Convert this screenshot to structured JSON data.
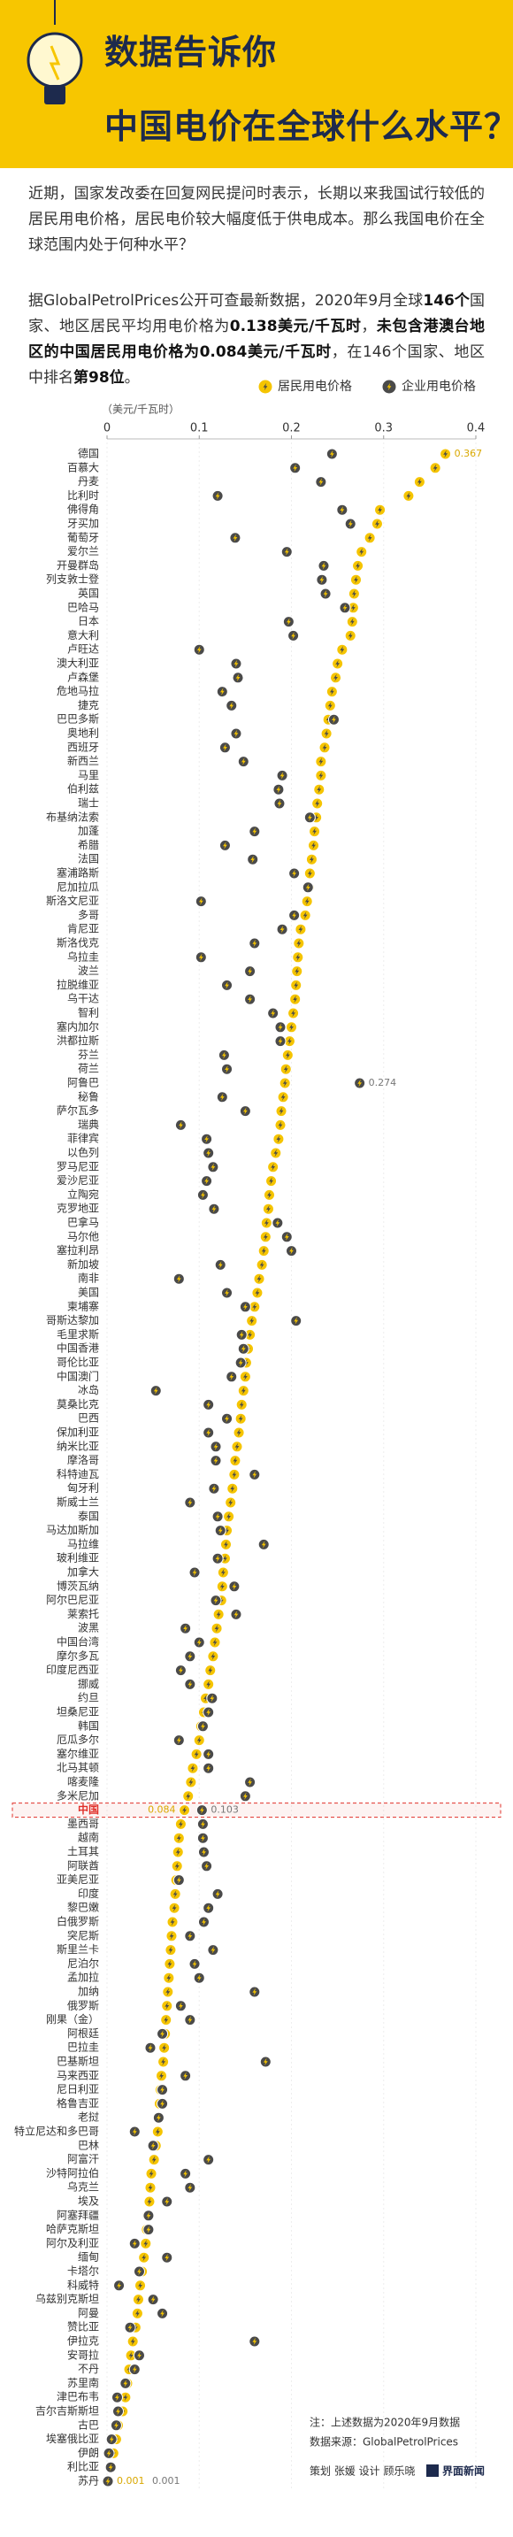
{
  "header": {
    "title_lines": [
      "数据告诉你",
      "中国电价在全球什么水平？"
    ]
  },
  "intro": [
    [
      {
        "text": "近期，国家发改委在回复网民提问时表示，长期以来我国试行较低的居民用电价格，居民电价较大幅度低于供电成本。那么我国电价在全球范围内处于何种水平？",
        "bold": false
      }
    ],
    [
      {
        "text": "据GlobalPetrolPrices公开可查最新数据，2020年9月全球",
        "bold": false
      },
      {
        "text": "146个",
        "bold": true
      },
      {
        "text": "国家、地区居民平均用电价格为",
        "bold": false
      },
      {
        "text": "0.138美元/千瓦时",
        "bold": true
      },
      {
        "text": "，",
        "bold": false
      },
      {
        "text": "未包含港澳台地区的中国居民用电价格为0.084美元/千瓦时",
        "bold": true
      },
      {
        "text": "，在146个国家、地区中排名",
        "bold": false
      },
      {
        "text": "第98位",
        "bold": true
      },
      {
        "text": "。",
        "bold": false
      }
    ]
  ],
  "chart_data": {
    "type": "dot",
    "x_label": "（美元/千瓦时）",
    "xlim": [
      0,
      0.4
    ],
    "xticks": [
      0,
      0.1,
      0.2,
      0.3,
      0.4
    ],
    "grid": true,
    "highlight": "中国",
    "highlight_color": "#e0302a",
    "categories": [
      "德国",
      "百慕大",
      "丹麦",
      "比利时",
      "佛得角",
      "牙买加",
      "葡萄牙",
      "爱尔兰",
      "开曼群岛",
      "列支敦士登",
      "英国",
      "巴哈马",
      "日本",
      "意大利",
      "卢旺达",
      "澳大利亚",
      "卢森堡",
      "危地马拉",
      "捷克",
      "巴巴多斯",
      "奥地利",
      "西班牙",
      "新西兰",
      "马里",
      "伯利兹",
      "瑞士",
      "布基纳法索",
      "加蓬",
      "希腊",
      "法国",
      "塞浦路斯",
      "尼加拉瓜",
      "斯洛文尼亚",
      "多哥",
      "肯尼亚",
      "斯洛伐克",
      "乌拉圭",
      "波兰",
      "拉脱维亚",
      "乌干达",
      "智利",
      "塞内加尔",
      "洪都拉斯",
      "芬兰",
      "荷兰",
      "阿鲁巴",
      "秘鲁",
      "萨尔瓦多",
      "瑞典",
      "菲律宾",
      "以色列",
      "罗马尼亚",
      "爱沙尼亚",
      "立陶宛",
      "克罗地亚",
      "巴拿马",
      "马尔他",
      "塞拉利昂",
      "新加坡",
      "南非",
      "美国",
      "柬埔寨",
      "哥斯达黎加",
      "毛里求斯",
      "中国香港",
      "哥伦比亚",
      "中国澳门",
      "冰岛",
      "莫桑比克",
      "巴西",
      "保加利亚",
      "纳米比亚",
      "摩洛哥",
      "科特迪瓦",
      "匈牙利",
      "斯威士兰",
      "泰国",
      "马达加斯加",
      "马拉维",
      "玻利维亚",
      "加拿大",
      "博茨瓦纳",
      "阿尔巴尼亚",
      "莱索托",
      "波黑",
      "中国台湾",
      "摩尔多瓦",
      "印度尼西亚",
      "挪威",
      "约旦",
      "坦桑尼亚",
      "韩国",
      "厄瓜多尔",
      "塞尔维亚",
      "北马其顿",
      "喀麦隆",
      "多米尼加",
      "中国",
      "墨西哥",
      "越南",
      "土耳其",
      "阿联酋",
      "亚美尼亚",
      "印度",
      "黎巴嫩",
      "白俄罗斯",
      "突尼斯",
      "斯里兰卡",
      "尼泊尔",
      "孟加拉",
      "加纳",
      "俄罗斯",
      "刚果（金）",
      "阿根廷",
      "巴拉圭",
      "巴基斯坦",
      "马来西亚",
      "尼日利亚",
      "格鲁吉亚",
      "老挝",
      "特立尼达和多巴哥",
      "巴林",
      "阿富汗",
      "沙特阿拉伯",
      "乌克兰",
      "埃及",
      "阿塞拜疆",
      "哈萨克斯坦",
      "阿尔及利亚",
      "缅甸",
      "卡塔尔",
      "科威特",
      "乌兹别克斯坦",
      "阿曼",
      "赞比亚",
      "伊拉克",
      "安哥拉",
      "不丹",
      "苏里南",
      "津巴布韦",
      "吉尔吉斯斯坦",
      "古巴",
      "埃塞俄比亚",
      "伊朗",
      "利比亚",
      "苏丹"
    ],
    "series": [
      {
        "name": "居民用电价格",
        "color": "#f5c400",
        "values": [
          0.367,
          0.356,
          0.339,
          0.327,
          0.296,
          0.293,
          0.285,
          0.276,
          0.272,
          0.27,
          0.268,
          0.267,
          0.266,
          0.264,
          0.255,
          0.25,
          0.248,
          0.244,
          0.242,
          0.24,
          0.238,
          0.236,
          0.232,
          0.232,
          0.23,
          0.228,
          0.227,
          0.225,
          0.224,
          0.222,
          0.22,
          0.219,
          0.217,
          0.215,
          0.21,
          0.208,
          0.207,
          0.206,
          0.205,
          0.204,
          0.202,
          0.2,
          0.198,
          0.196,
          0.194,
          0.193,
          0.191,
          0.189,
          0.188,
          0.186,
          0.183,
          0.18,
          0.178,
          0.176,
          0.175,
          0.173,
          0.172,
          0.17,
          0.168,
          0.165,
          0.163,
          0.16,
          0.157,
          0.155,
          0.153,
          0.151,
          0.15,
          0.148,
          0.146,
          0.145,
          0.143,
          0.141,
          0.139,
          0.138,
          0.136,
          0.134,
          0.132,
          0.13,
          0.129,
          0.128,
          0.126,
          0.125,
          0.124,
          0.121,
          0.119,
          0.117,
          0.115,
          0.112,
          0.11,
          0.107,
          0.105,
          0.102,
          0.1,
          0.097,
          0.093,
          0.091,
          0.088,
          0.084,
          0.08,
          0.078,
          0.077,
          0.076,
          0.075,
          0.074,
          0.073,
          0.071,
          0.07,
          0.069,
          0.068,
          0.067,
          0.066,
          0.065,
          0.064,
          0.063,
          0.062,
          0.061,
          0.059,
          0.058,
          0.057,
          0.056,
          0.055,
          0.053,
          0.051,
          0.048,
          0.047,
          0.046,
          0.044,
          0.043,
          0.042,
          0.04,
          0.038,
          0.036,
          0.034,
          0.033,
          0.031,
          0.028,
          0.026,
          0.024,
          0.022,
          0.02,
          0.017,
          0.012,
          0.01,
          0.007,
          0.004,
          0.001
        ],
        "value_labels": [
          "0.367",
          null,
          null,
          null,
          null,
          null,
          null,
          null,
          null,
          null,
          null,
          null,
          null,
          null,
          null,
          null,
          null,
          null,
          null,
          null,
          null,
          null,
          null,
          null,
          null,
          null,
          null,
          null,
          null,
          null,
          null,
          null,
          null,
          null,
          null,
          null,
          null,
          null,
          null,
          null,
          null,
          null,
          null,
          null,
          null,
          null,
          null,
          null,
          null,
          null,
          null,
          null,
          null,
          null,
          null,
          null,
          null,
          null,
          null,
          null,
          null,
          null,
          null,
          null,
          null,
          null,
          null,
          null,
          null,
          null,
          null,
          null,
          null,
          null,
          null,
          null,
          null,
          null,
          null,
          null,
          null,
          null,
          null,
          null,
          null,
          null,
          null,
          null,
          null,
          null,
          null,
          null,
          null,
          null,
          null,
          null,
          null,
          "0.084",
          null,
          null,
          null,
          null,
          null,
          null,
          null,
          null,
          null,
          null,
          null,
          null,
          null,
          null,
          null,
          null,
          null,
          null,
          null,
          null,
          null,
          null,
          null,
          null,
          null,
          null,
          null,
          null,
          null,
          null,
          null,
          null,
          null,
          null,
          null,
          null,
          null,
          null,
          null,
          null,
          null,
          null,
          null,
          null,
          null,
          null,
          null,
          "0.001"
        ]
      },
      {
        "name": "企业用电价格",
        "color": "#4a4a4a",
        "values": [
          0.244,
          0.204,
          0.232,
          0.12,
          0.255,
          0.264,
          0.139,
          0.195,
          0.235,
          0.233,
          0.237,
          0.258,
          0.197,
          0.202,
          0.1,
          0.14,
          0.142,
          0.125,
          0.135,
          0.246,
          0.14,
          0.128,
          0.148,
          0.19,
          0.186,
          0.187,
          0.22,
          0.16,
          0.128,
          0.158,
          0.203,
          0.218,
          0.102,
          0.203,
          0.19,
          0.16,
          0.102,
          0.155,
          0.13,
          0.155,
          0.18,
          0.188,
          0.188,
          0.127,
          0.13,
          0.274,
          0.125,
          0.15,
          0.08,
          0.108,
          0.11,
          0.115,
          0.108,
          0.104,
          0.116,
          0.185,
          0.195,
          0.2,
          0.123,
          0.078,
          0.13,
          0.15,
          0.205,
          0.146,
          0.148,
          0.145,
          0.135,
          0.053,
          0.11,
          0.13,
          0.11,
          0.118,
          0.118,
          0.16,
          0.116,
          0.09,
          0.12,
          0.123,
          0.17,
          0.12,
          0.095,
          0.138,
          0.118,
          0.14,
          0.085,
          0.1,
          0.09,
          0.08,
          0.09,
          0.114,
          0.11,
          0.104,
          0.078,
          0.11,
          0.11,
          0.155,
          0.15,
          0.103,
          0.104,
          0.104,
          0.105,
          0.108,
          0.078,
          0.12,
          0.11,
          0.105,
          0.09,
          0.115,
          0.095,
          0.1,
          0.16,
          0.08,
          0.09,
          0.06,
          0.047,
          0.172,
          0.085,
          0.06,
          0.06,
          0.056,
          0.03,
          0.05,
          0.11,
          0.085,
          0.09,
          0.065,
          0.045,
          0.045,
          0.03,
          0.065,
          0.035,
          0.013,
          0.05,
          0.06,
          0.025,
          0.16,
          0.035,
          0.03,
          0.02,
          0.011,
          0.012,
          0.01,
          0.005,
          0.002,
          0.004,
          0.001
        ],
        "value_labels": [
          null,
          null,
          null,
          null,
          null,
          null,
          null,
          null,
          null,
          null,
          null,
          null,
          null,
          null,
          null,
          null,
          null,
          null,
          null,
          null,
          null,
          null,
          null,
          null,
          null,
          null,
          null,
          null,
          null,
          null,
          null,
          null,
          null,
          null,
          null,
          null,
          null,
          null,
          null,
          null,
          null,
          null,
          null,
          null,
          null,
          "0.274",
          null,
          null,
          null,
          null,
          null,
          null,
          null,
          null,
          null,
          null,
          null,
          null,
          null,
          null,
          null,
          null,
          null,
          null,
          null,
          null,
          null,
          null,
          null,
          null,
          null,
          null,
          null,
          null,
          null,
          null,
          null,
          null,
          null,
          null,
          null,
          null,
          null,
          null,
          null,
          null,
          null,
          null,
          null,
          null,
          null,
          null,
          null,
          null,
          null,
          null,
          null,
          "0.103",
          null,
          null,
          null,
          null,
          null,
          null,
          null,
          null,
          null,
          null,
          null,
          null,
          null,
          null,
          null,
          null,
          null,
          null,
          null,
          null,
          null,
          null,
          null,
          null,
          null,
          null,
          null,
          null,
          null,
          null,
          null,
          null,
          null,
          null,
          null,
          null,
          null,
          null,
          null,
          null,
          null,
          null,
          null,
          null,
          null,
          null,
          null,
          "0.001"
        ]
      }
    ]
  },
  "footer": {
    "note": "注：上述数据为2020年9月数据",
    "source": "数据来源：GlobalPetrolPrices",
    "credits": "策划 张媛  设计 顾乐晓",
    "brand": "界面新闻"
  }
}
